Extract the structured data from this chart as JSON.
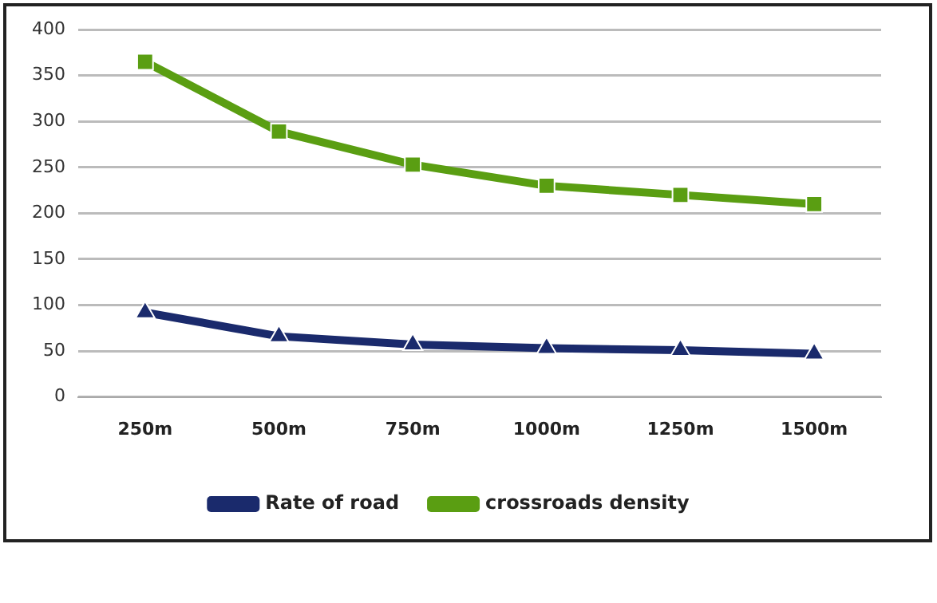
{
  "chart_data": {
    "type": "line",
    "categories": [
      "250m",
      "500m",
      "750m",
      "1000m",
      "1250m",
      "1500m"
    ],
    "series": [
      {
        "name": "Rate of road",
        "color": "#1a2a6c",
        "marker": "triangle",
        "values": [
          92,
          66,
          57,
          53,
          51,
          47
        ]
      },
      {
        "name": "crossroads density",
        "color": "#5a9e12",
        "marker": "square",
        "values": [
          365,
          289,
          253,
          230,
          220,
          210
        ]
      }
    ],
    "ylim": [
      0,
      400
    ],
    "yticks": [
      0,
      50,
      100,
      150,
      200,
      250,
      300,
      350,
      400
    ],
    "grid": "y",
    "legend": "bottom"
  }
}
